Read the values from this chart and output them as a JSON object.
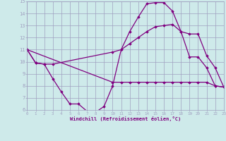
{
  "xlabel": "Windchill (Refroidissement éolien,°C)",
  "xlim": [
    0,
    23
  ],
  "ylim": [
    6,
    15
  ],
  "xticks": [
    0,
    1,
    2,
    3,
    4,
    5,
    6,
    7,
    8,
    9,
    10,
    11,
    12,
    13,
    14,
    15,
    16,
    17,
    18,
    19,
    20,
    21,
    22,
    23
  ],
  "yticks": [
    6,
    7,
    8,
    9,
    10,
    11,
    12,
    13,
    14,
    15
  ],
  "bg_color": "#ceeaea",
  "grid_color": "#a0a0c0",
  "line_color": "#800080",
  "lines": [
    {
      "x": [
        0,
        1,
        2,
        3,
        4,
        5,
        6,
        7,
        8,
        9,
        10,
        11,
        12,
        13,
        14,
        15,
        16,
        17,
        18,
        19,
        20,
        21,
        22,
        23
      ],
      "y": [
        11,
        9.9,
        9.8,
        8.6,
        7.5,
        6.5,
        6.5,
        5.9,
        5.8,
        6.3,
        8.0,
        11.0,
        12.5,
        13.7,
        14.8,
        14.9,
        14.9,
        14.2,
        12.5,
        10.4,
        10.4,
        9.5,
        8.0,
        7.9
      ],
      "marker": "D",
      "markersize": 1.8,
      "linewidth": 0.9
    },
    {
      "x": [
        0,
        1,
        2,
        3,
        10,
        11,
        12,
        13,
        14,
        15,
        16,
        17,
        18,
        19,
        20,
        21,
        22,
        23
      ],
      "y": [
        11,
        9.9,
        9.8,
        9.8,
        10.8,
        11.0,
        11.5,
        12.0,
        12.5,
        12.9,
        13.0,
        13.1,
        12.5,
        12.3,
        12.3,
        10.5,
        9.5,
        7.9
      ],
      "marker": "D",
      "markersize": 1.8,
      "linewidth": 0.9
    },
    {
      "x": [
        0,
        10,
        11,
        12,
        13,
        14,
        15,
        16,
        17,
        18,
        19,
        20,
        21,
        22,
        23
      ],
      "y": [
        11,
        8.3,
        8.3,
        8.3,
        8.3,
        8.3,
        8.3,
        8.3,
        8.3,
        8.3,
        8.3,
        8.3,
        8.3,
        8.0,
        7.9
      ],
      "marker": "D",
      "markersize": 1.8,
      "linewidth": 0.9
    }
  ]
}
